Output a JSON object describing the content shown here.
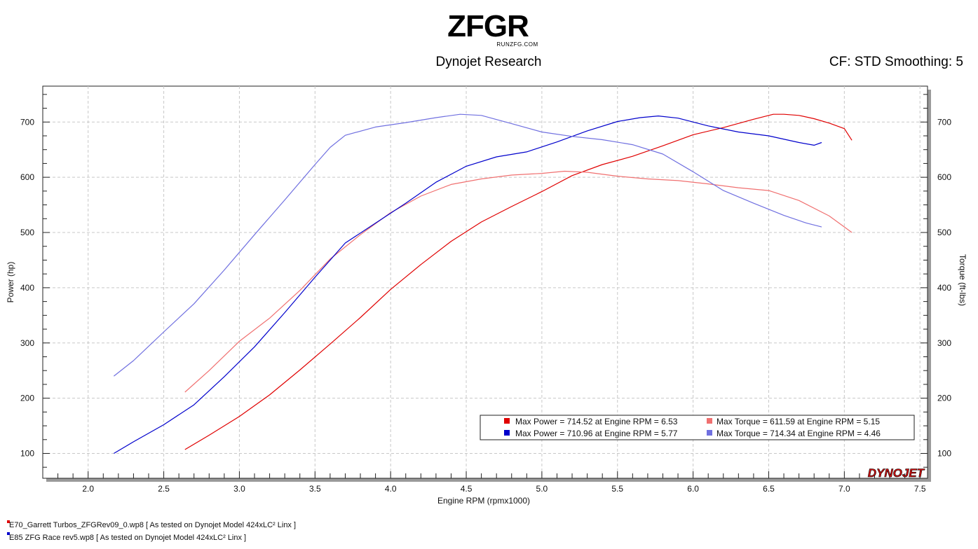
{
  "header": {
    "logo_text": "ZFGR",
    "logo_subtext": "RUNZFG.COM",
    "title": "Dynojet Research",
    "cf_info": "CF: STD Smoothing: 5",
    "brand_mark": "DYNOJET"
  },
  "footer": {
    "runs": [
      {
        "label": "E70_Garrett Turbos_ZFGRev09_0.wp8 [ As tested on Dynojet Model 424xLC² Linx ]",
        "color": "#e00000"
      },
      {
        "label": "E85 ZFG Race rev5.wp8 [ As tested on Dynojet Model 424xLC² Linx ]",
        "color": "#0000cc"
      }
    ]
  },
  "chart_data": {
    "type": "line",
    "xlabel": "Engine RPM (rpmx1000)",
    "ylabel_left": "Power (hp)",
    "ylabel_right": "Torque (ft-lbs)",
    "xlim": [
      1.7,
      7.55
    ],
    "ylim": [
      55,
      765
    ],
    "x_ticks": [
      "2.0",
      "2.5",
      "3.0",
      "3.5",
      "4.0",
      "4.5",
      "5.0",
      "5.5",
      "6.0",
      "6.5",
      "7.0",
      "7.5"
    ],
    "y_ticks": [
      "100",
      "200",
      "300",
      "400",
      "500",
      "600",
      "700"
    ],
    "y_ticks_right": [
      "100",
      "200",
      "300",
      "400",
      "500",
      "600",
      "700"
    ],
    "grid": true,
    "legend": [
      "Max Power = 714.52 at Engine RPM = 6.53",
      "Max Torque = 611.59 at Engine RPM = 5.15",
      "Max Power = 710.96 at Engine RPM = 5.77",
      "Max Torque = 714.34 at Engine RPM = 4.46"
    ],
    "legend_colors": [
      "#e00000",
      "#f07070",
      "#0000cc",
      "#7070e0"
    ],
    "legend_placement": "bottom-right",
    "series": [
      {
        "color": "#e00000",
        "x": [
          2.64,
          2.8,
          3.0,
          3.2,
          3.4,
          3.6,
          3.8,
          4.0,
          4.2,
          4.4,
          4.6,
          4.8,
          5.0,
          5.2,
          5.4,
          5.6,
          5.8,
          6.0,
          6.2,
          6.4,
          6.53,
          6.6,
          6.7,
          6.8,
          6.9,
          7.0,
          7.05
        ],
        "y": [
          107,
          133,
          167,
          206,
          251,
          298,
          346,
          397,
          442,
          484,
          519,
          547,
          574,
          603,
          623,
          638,
          657,
          677,
          690,
          705,
          714,
          714,
          712,
          706,
          698,
          688,
          667
        ]
      },
      {
        "color": "#f07070",
        "x": [
          2.64,
          2.8,
          3.0,
          3.2,
          3.4,
          3.6,
          3.8,
          4.0,
          4.2,
          4.4,
          4.6,
          4.8,
          5.0,
          5.15,
          5.3,
          5.5,
          5.7,
          5.9,
          6.1,
          6.3,
          6.5,
          6.7,
          6.9,
          7.05
        ],
        "y": [
          211,
          250,
          303,
          345,
          395,
          452,
          496,
          536,
          566,
          587,
          597,
          604,
          607,
          611,
          609,
          602,
          597,
          594,
          588,
          581,
          576,
          558,
          530,
          500
        ]
      },
      {
        "color": "#0000cc",
        "x": [
          2.17,
          2.3,
          2.5,
          2.7,
          2.9,
          3.1,
          3.3,
          3.5,
          3.7,
          3.9,
          4.1,
          4.3,
          4.5,
          4.7,
          4.9,
          5.1,
          5.3,
          5.5,
          5.65,
          5.77,
          5.9,
          6.1,
          6.3,
          6.5,
          6.7,
          6.8,
          6.85
        ],
        "y": [
          100,
          121,
          152,
          188,
          239,
          293,
          355,
          419,
          481,
          517,
          553,
          591,
          620,
          637,
          646,
          664,
          684,
          701,
          708,
          711,
          707,
          693,
          682,
          675,
          663,
          658,
          663
        ]
      },
      {
        "color": "#7070e0",
        "x": [
          2.17,
          2.3,
          2.5,
          2.7,
          2.9,
          3.1,
          3.3,
          3.5,
          3.6,
          3.7,
          3.9,
          4.1,
          4.3,
          4.46,
          4.6,
          4.8,
          5.0,
          5.2,
          5.4,
          5.6,
          5.8,
          6.0,
          6.2,
          6.4,
          6.6,
          6.75,
          6.85
        ],
        "y": [
          240,
          268,
          320,
          371,
          432,
          496,
          559,
          623,
          654,
          676,
          691,
          699,
          708,
          714,
          712,
          697,
          682,
          674,
          668,
          659,
          642,
          610,
          576,
          553,
          531,
          517,
          510
        ]
      }
    ]
  }
}
